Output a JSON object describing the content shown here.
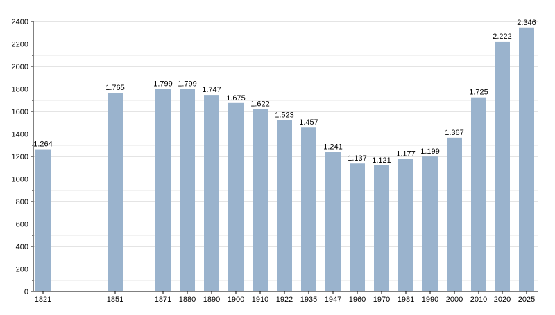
{
  "chart_data": {
    "type": "bar",
    "categories": [
      "1821",
      "1851",
      "1871",
      "1880",
      "1890",
      "1900",
      "1910",
      "1922",
      "1935",
      "1947",
      "1960",
      "1970",
      "1981",
      "1990",
      "2000",
      "2010",
      "2020",
      "2025"
    ],
    "values": [
      1264,
      1765,
      1799,
      1799,
      1747,
      1675,
      1622,
      1523,
      1457,
      1241,
      1137,
      1121,
      1177,
      1199,
      1367,
      1725,
      2222,
      2346
    ],
    "value_labels": [
      "1.264",
      "1.765",
      "1.799",
      "1.799",
      "1.747",
      "1.675",
      "1.622",
      "1.523",
      "1.457",
      "1.241",
      "1.137",
      "1.121",
      "1.177",
      "1.199",
      "1.367",
      "1.725",
      "2.222",
      "2.346"
    ],
    "title": "",
    "xlabel": "",
    "ylabel": "",
    "ylim": [
      0,
      2400
    ],
    "y_ticks": [
      "0",
      "200",
      "400",
      "600",
      "800",
      "1000",
      "1200",
      "1400",
      "1600",
      "1800",
      "2000",
      "2200",
      "2400"
    ],
    "grid": true,
    "legend": "none",
    "bar_color": "#9ab3cd",
    "grid_color": "#c9c9c9"
  }
}
